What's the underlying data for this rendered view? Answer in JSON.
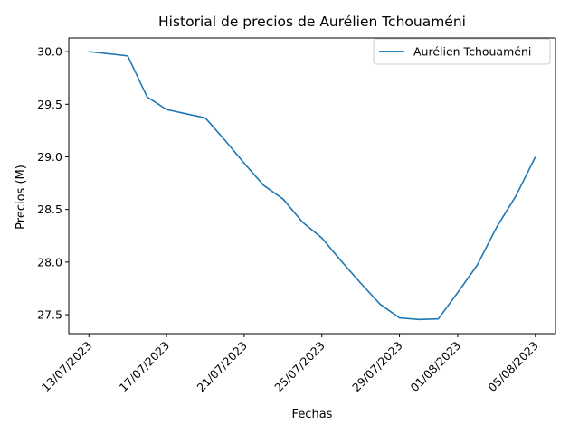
{
  "chart_data": {
    "type": "line",
    "title": "Historial de precios de Aurélien Tchouaméni",
    "xlabel": "Fechas",
    "ylabel": "Precios (M)",
    "x": [
      "2023-07-13",
      "2023-07-15",
      "2023-07-16",
      "2023-07-17",
      "2023-07-18",
      "2023-07-19",
      "2023-07-20",
      "2023-07-21",
      "2023-07-22",
      "2023-07-23",
      "2023-07-24",
      "2023-07-25",
      "2023-07-26",
      "2023-07-27",
      "2023-07-28",
      "2023-07-29",
      "2023-07-30",
      "2023-07-31",
      "2023-08-01",
      "2023-08-02",
      "2023-08-03",
      "2023-08-04",
      "2023-08-05"
    ],
    "series": [
      {
        "name": "Aurélien Tchouaméni",
        "color": "#1f77b4",
        "values": [
          30.0,
          29.96,
          29.57,
          29.45,
          29.41,
          29.37,
          29.16,
          28.94,
          28.73,
          28.6,
          28.38,
          28.23,
          28.01,
          27.8,
          27.6,
          27.47,
          27.455,
          27.46,
          27.71,
          27.97,
          28.33,
          28.63,
          29.0
        ]
      }
    ],
    "xticks": [
      "13/07/2023",
      "17/07/2023",
      "21/07/2023",
      "25/07/2023",
      "29/07/2023",
      "01/08/2023",
      "05/08/2023"
    ],
    "yticks": [
      "27.5",
      "28.0",
      "28.5",
      "29.0",
      "29.5",
      "30.0"
    ],
    "ylim": [
      27.32,
      30.13
    ],
    "legend": "top-right",
    "grid": false
  }
}
